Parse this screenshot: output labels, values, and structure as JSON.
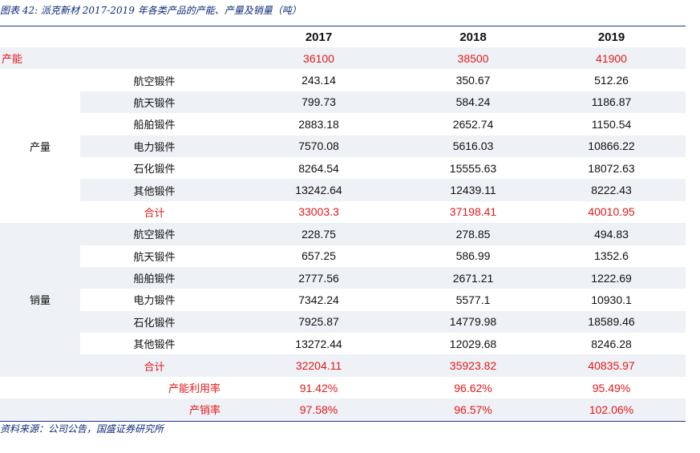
{
  "caption": "图表 42: 派克新材 2017-2019 年各类产品的产能、产量及销量（吨）",
  "source": "资料来源：公司公告，国盛证券研究所",
  "years": [
    "2017",
    "2018",
    "2019"
  ],
  "capacity": {
    "label": "产能",
    "values": [
      "36100",
      "38500",
      "41900"
    ]
  },
  "output": {
    "label": "产量",
    "rows": [
      {
        "name": "航空锻件",
        "values": [
          "243.14",
          "350.67",
          "512.26"
        ]
      },
      {
        "name": "航天锻件",
        "values": [
          "799.73",
          "584.24",
          "1186.87"
        ]
      },
      {
        "name": "船舶锻件",
        "values": [
          "2883.18",
          "2652.74",
          "1150.54"
        ]
      },
      {
        "name": "电力锻件",
        "values": [
          "7570.08",
          "5616.03",
          "10866.22"
        ]
      },
      {
        "name": "石化锻件",
        "values": [
          "8264.54",
          "15555.63",
          "18072.63"
        ]
      },
      {
        "name": "其他锻件",
        "values": [
          "13242.64",
          "12439.11",
          "8222.43"
        ]
      }
    ],
    "total": {
      "name": "合计",
      "values": [
        "33003.3",
        "37198.41",
        "40010.95"
      ]
    }
  },
  "sales": {
    "label": "销量",
    "rows": [
      {
        "name": "航空锻件",
        "values": [
          "228.75",
          "278.85",
          "494.83"
        ]
      },
      {
        "name": "航天锻件",
        "values": [
          "657.25",
          "586.99",
          "1352.6"
        ]
      },
      {
        "name": "船舶锻件",
        "values": [
          "2777.56",
          "2671.21",
          "1222.69"
        ]
      },
      {
        "name": "电力锻件",
        "values": [
          "7342.24",
          "5577.1",
          "10930.1"
        ]
      },
      {
        "name": "石化锻件",
        "values": [
          "7925.87",
          "14779.98",
          "18589.46"
        ]
      },
      {
        "name": "其他锻件",
        "values": [
          "13272.44",
          "12029.68",
          "8246.28"
        ]
      }
    ],
    "total": {
      "name": "合计",
      "values": [
        "32204.11",
        "35923.82",
        "40835.97"
      ]
    }
  },
  "utilization": {
    "name": "产能利用率",
    "values": [
      "91.42%",
      "96.62%",
      "95.49%"
    ]
  },
  "sell_through": {
    "name": "产销率",
    "values": [
      "97.58%",
      "96.57%",
      "102.06%"
    ]
  },
  "colors": {
    "accent": "#e01a1a",
    "rule": "#1f3a8a",
    "shade": "#eef1f6",
    "caption": "#0b2a78"
  }
}
